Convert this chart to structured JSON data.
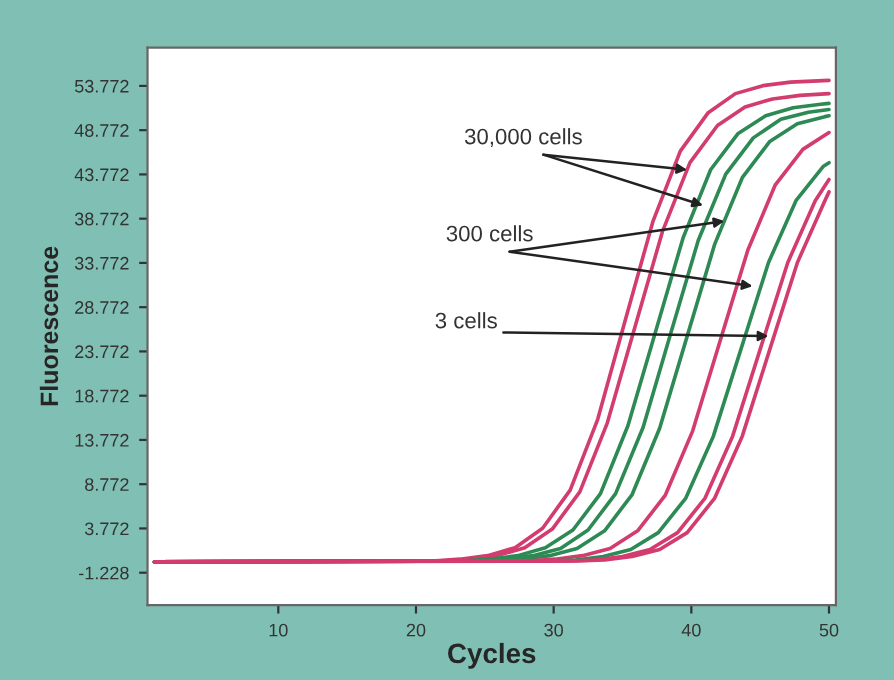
{
  "chart_data": {
    "type": "line",
    "xlabel": "Cycles",
    "ylabel": "Fluorescence",
    "xlim": [
      0.5,
      50.5
    ],
    "xticks": [
      10,
      20,
      30,
      40,
      50
    ],
    "ylim": [
      -4.9,
      58.1
    ],
    "yticks": [
      -1.228,
      3.772,
      8.772,
      13.772,
      18.772,
      23.772,
      28.772,
      33.772,
      38.772,
      43.772,
      48.772,
      53.772
    ],
    "grid": false,
    "legend": false,
    "marker": "none",
    "line_style": "solid",
    "series": [
      {
        "color": "#d23c6e",
        "x": [
          1,
          21.2,
          23.2,
          25.2,
          27.2,
          29.2,
          31.2,
          33.2,
          35.2,
          37.2,
          39.2,
          41.2,
          43.2,
          45.2,
          47.2,
          50
        ],
        "values": [
          0,
          0.1,
          0.3,
          0.7,
          1.6,
          3.8,
          8.1,
          16.1,
          27.3,
          38.4,
          46.4,
          50.7,
          52.9,
          53.8,
          54.2,
          54.4
        ]
      },
      {
        "color": "#d23c6e",
        "x": [
          1,
          21.9,
          23.9,
          25.9,
          27.9,
          29.9,
          31.9,
          33.9,
          35.9,
          37.9,
          39.9,
          41.9,
          43.9,
          45.9,
          47.9,
          50
        ],
        "values": [
          0,
          0.1,
          0.3,
          0.7,
          1.6,
          3.7,
          7.9,
          15.7,
          26.5,
          37.3,
          45.1,
          49.3,
          51.4,
          52.3,
          52.7,
          52.9
        ]
      },
      {
        "color": "#2e8a55",
        "x": [
          1,
          23.4,
          25.4,
          27.4,
          29.4,
          31.4,
          33.4,
          35.4,
          37.4,
          39.4,
          41.4,
          43.4,
          45.4,
          47.4,
          49.4,
          50
        ],
        "values": [
          0,
          0.1,
          0.3,
          0.7,
          1.6,
          3.6,
          7.7,
          15.4,
          26,
          36.6,
          44.3,
          48.4,
          50.4,
          51.3,
          51.7,
          51.8
        ]
      },
      {
        "color": "#2e8a55",
        "x": [
          1,
          24.5,
          26.5,
          28.5,
          30.5,
          32.5,
          34.5,
          36.5,
          38.5,
          40.5,
          42.5,
          44.5,
          46.5,
          48.5,
          50
        ],
        "values": [
          0,
          0.1,
          0.3,
          0.7,
          1.5,
          3.6,
          7.7,
          15.2,
          25.8,
          36.3,
          43.8,
          47.9,
          50,
          50.8,
          51.1
        ]
      },
      {
        "color": "#2e8a55",
        "x": [
          1,
          25.7,
          27.7,
          29.7,
          31.7,
          33.7,
          35.7,
          37.7,
          39.7,
          41.7,
          43.7,
          45.7,
          47.7,
          49.7,
          50
        ],
        "values": [
          0,
          0.1,
          0.3,
          0.7,
          1.5,
          3.5,
          7.6,
          15.1,
          25.5,
          35.9,
          43.4,
          47.5,
          49.5,
          50.3,
          50.4
        ]
      },
      {
        "color": "#d23c6e",
        "x": [
          1,
          28.1,
          30.1,
          32.1,
          34.1,
          36.1,
          38.1,
          40.1,
          42.1,
          44.1,
          46.1,
          48.1,
          50
        ],
        "values": [
          0,
          0.1,
          0.3,
          0.7,
          1.5,
          3.5,
          7.5,
          14.8,
          25,
          35.2,
          42.6,
          46.6,
          48.5
        ]
      },
      {
        "color": "#2e8a55",
        "x": [
          1,
          29.6,
          31.6,
          33.6,
          35.6,
          37.6,
          39.6,
          41.6,
          43.6,
          45.6,
          47.6,
          49.6,
          50
        ],
        "values": [
          0,
          0.1,
          0.2,
          0.6,
          1.4,
          3.3,
          7.2,
          14.2,
          24,
          33.8,
          40.8,
          44.7,
          45.1
        ]
      },
      {
        "color": "#d23c6e",
        "x": [
          1,
          31,
          33,
          35,
          37,
          39,
          41,
          43,
          45,
          47,
          49,
          50
        ],
        "values": [
          0,
          0.1,
          0.2,
          0.6,
          1.4,
          3.3,
          7.2,
          14.2,
          24,
          33.8,
          40.8,
          43.2
        ]
      },
      {
        "color": "#d23c6e",
        "x": [
          1,
          31.7,
          33.7,
          35.7,
          37.7,
          39.7,
          41.7,
          43.7,
          45.7,
          47.7,
          49.7,
          50
        ],
        "values": [
          0,
          0.1,
          0.2,
          0.6,
          1.4,
          3.3,
          7.2,
          14.2,
          24,
          33.8,
          40.8,
          41.8
        ]
      }
    ],
    "annotations": [
      {
        "text": "30,000 cells",
        "x": 39.7,
        "y": 44.3
      },
      {
        "text": "300 cells",
        "x": 42.4,
        "y": 38.5
      },
      {
        "text": "3 cells",
        "x": 45.6,
        "y": 25.5
      }
    ]
  }
}
